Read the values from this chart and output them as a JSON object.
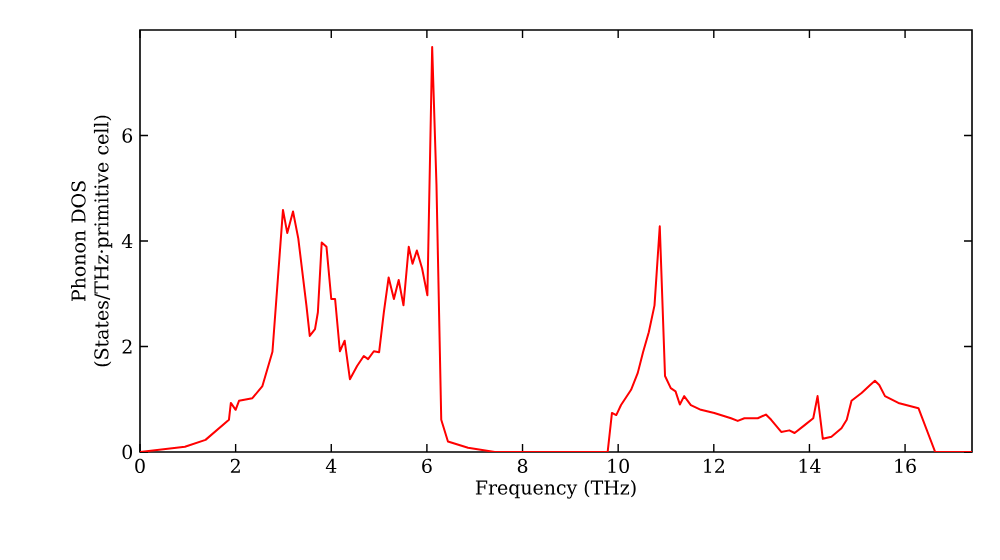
{
  "chart_data": {
    "type": "line",
    "xlabel": "Frequency (THz)",
    "ylabel": "Phonon DOS (States/THz·primitive cell)",
    "xlim": [
      0,
      17.4
    ],
    "ylim": [
      0,
      8
    ],
    "xticks": [
      0,
      2,
      4,
      6,
      8,
      10,
      12,
      14,
      16
    ],
    "yticks": [
      0,
      2,
      4,
      6
    ],
    "grid": false,
    "marker": "none",
    "line_style": "solid",
    "x": [
      0,
      0.94,
      1.37,
      1.86,
      1.9,
      2.0,
      2.07,
      2.35,
      2.56,
      2.77,
      2.99,
      3.08,
      3.2,
      3.31,
      3.48,
      3.55,
      3.66,
      3.72,
      3.8,
      3.9,
      4.0,
      4.08,
      4.18,
      4.28,
      4.39,
      4.54,
      4.68,
      4.77,
      4.89,
      5.0,
      5.1,
      5.2,
      5.31,
      5.41,
      5.51,
      5.62,
      5.7,
      5.79,
      5.9,
      6.01,
      6.11,
      6.2,
      6.3,
      6.44,
      6.86,
      7.42,
      9.78,
      9.87,
      9.96,
      10.06,
      10.27,
      10.41,
      10.52,
      10.64,
      10.76,
      10.87,
      10.98,
      11.1,
      11.2,
      11.29,
      11.38,
      11.52,
      11.73,
      12.01,
      12.36,
      12.5,
      12.64,
      12.92,
      13.09,
      13.2,
      13.41,
      13.58,
      13.69,
      13.9,
      14.08,
      14.17,
      14.28,
      14.46,
      14.67,
      14.78,
      14.88,
      15.09,
      15.27,
      15.37,
      15.46,
      15.58,
      15.86,
      16.28,
      16.63,
      17.4
    ],
    "series": [
      {
        "color": "#ff0000",
        "values": [
          0,
          0.1,
          0.23,
          0.61,
          0.93,
          0.8,
          0.97,
          1.02,
          1.25,
          1.9,
          4.59,
          4.15,
          4.56,
          4.05,
          2.78,
          2.2,
          2.33,
          2.65,
          3.97,
          3.89,
          2.9,
          2.9,
          1.91,
          2.11,
          1.38,
          1.63,
          1.82,
          1.76,
          1.91,
          1.89,
          2.65,
          3.31,
          2.9,
          3.26,
          2.78,
          3.89,
          3.57,
          3.82,
          3.48,
          2.97,
          7.68,
          5.07,
          0.61,
          0.2,
          0.08,
          0,
          0,
          0.74,
          0.7,
          0.89,
          1.18,
          1.5,
          1.89,
          2.27,
          2.78,
          4.28,
          1.44,
          1.21,
          1.15,
          0.9,
          1.06,
          0.89,
          0.8,
          0.74,
          0.64,
          0.59,
          0.64,
          0.64,
          0.71,
          0.61,
          0.38,
          0.41,
          0.36,
          0.51,
          0.64,
          1.06,
          0.25,
          0.29,
          0.45,
          0.61,
          0.97,
          1.12,
          1.27,
          1.35,
          1.27,
          1.06,
          0.93,
          0.83,
          0,
          0
        ]
      }
    ]
  }
}
